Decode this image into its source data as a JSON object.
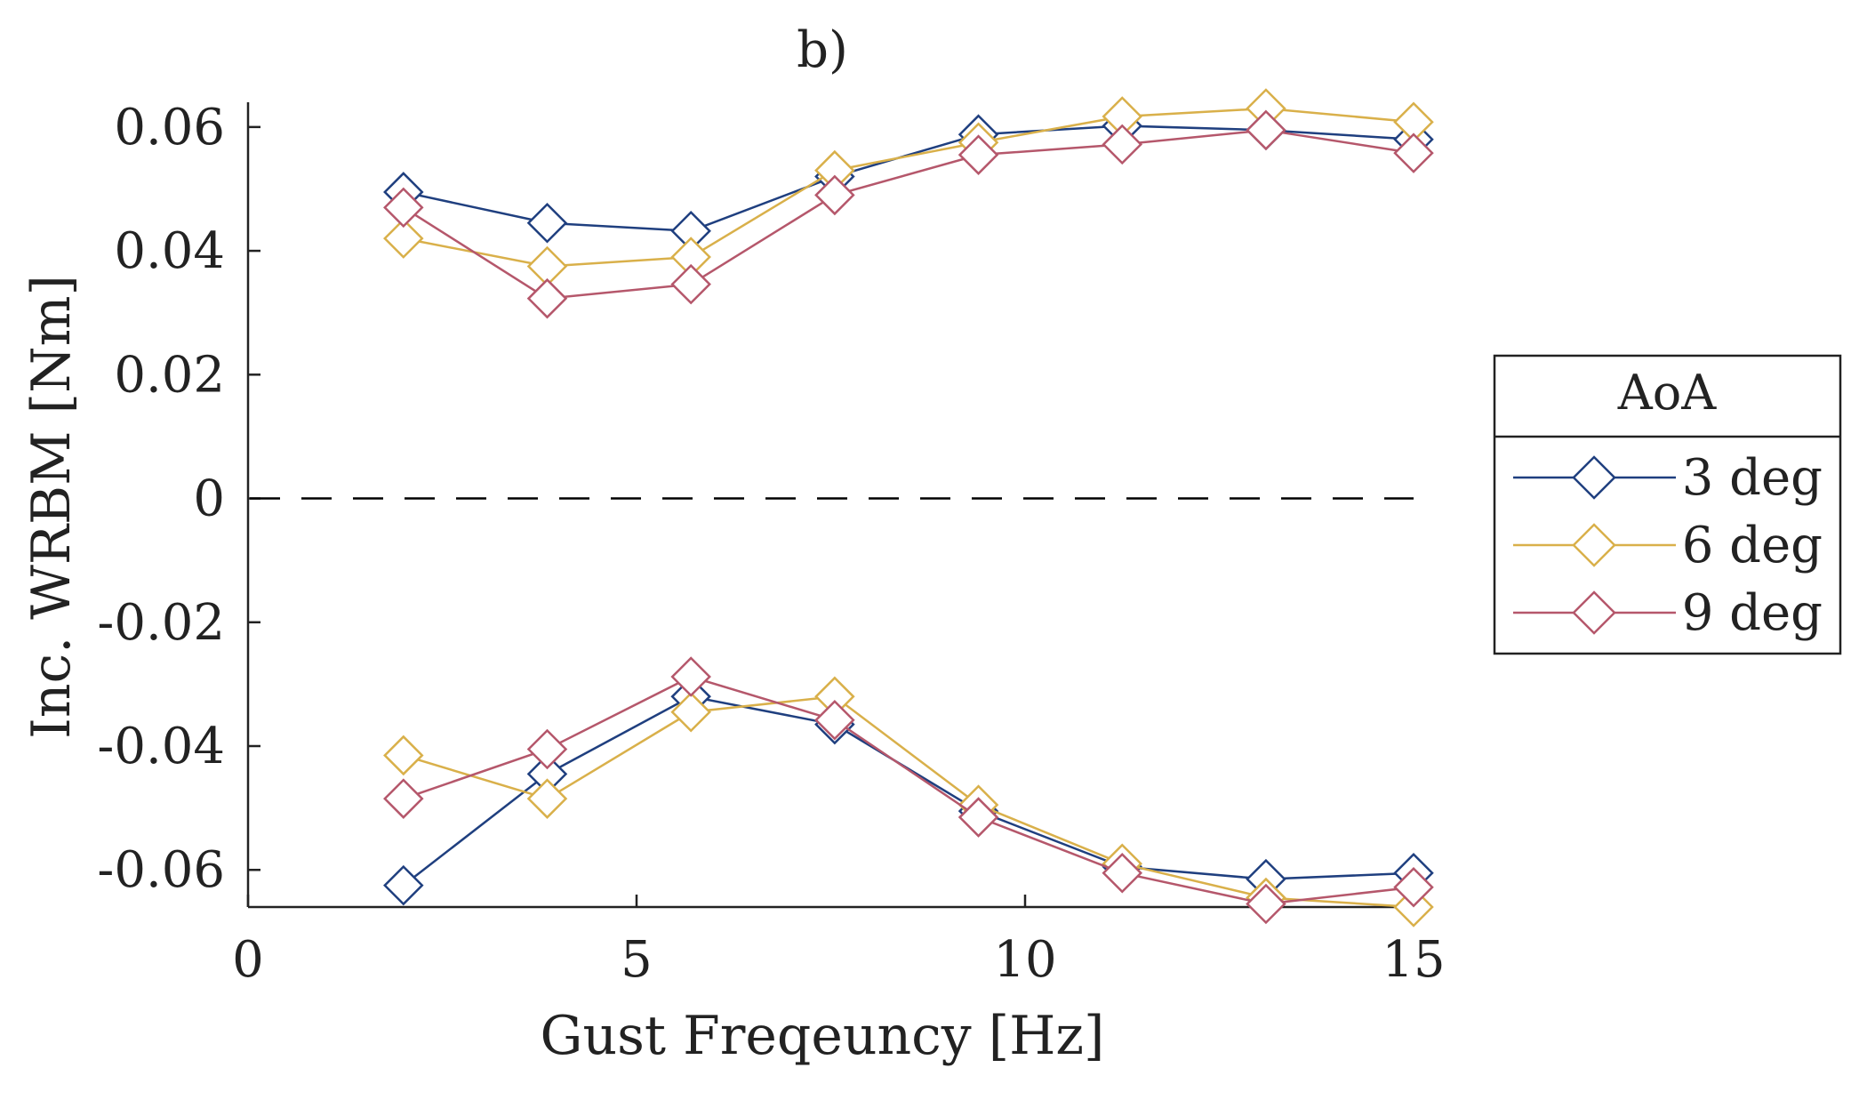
{
  "chart_data": {
    "type": "line",
    "title": "b)",
    "xlabel": "Gust Freqeuncy [Hz]",
    "ylabel": "Inc. WRBM [Nm]",
    "xlim": [
      0,
      15
    ],
    "ylim": [
      -0.066,
      0.064
    ],
    "xticks": [
      0,
      5,
      10,
      15
    ],
    "ytick_values": [
      -0.06,
      -0.04,
      -0.02,
      0,
      0.02,
      0.04,
      0.06
    ],
    "ytick_labels": [
      "-0.06",
      "-0.04",
      "-0.02",
      "0",
      "0.02",
      "0.04",
      "0.06"
    ],
    "grid": false,
    "reference_line": {
      "y": 0,
      "style": "dashed",
      "color": "#000000"
    },
    "legend": {
      "title": "AoA",
      "position": "right-outside"
    },
    "x": [
      2.0,
      3.85,
      5.7,
      7.55,
      9.4,
      11.25,
      13.1,
      15.0
    ],
    "series": [
      {
        "name": "3 deg",
        "color": "#1f3f7f",
        "upper": [
          0.0495,
          0.0445,
          0.0432,
          0.052,
          0.0588,
          0.0602,
          0.0595,
          0.058
        ],
        "lower": [
          -0.0625,
          -0.0445,
          -0.032,
          -0.0365,
          -0.0505,
          -0.0595,
          -0.0615,
          -0.0605
        ]
      },
      {
        "name": "6 deg",
        "color": "#d9b04a",
        "upper": [
          0.042,
          0.0375,
          0.039,
          0.053,
          0.0575,
          0.0617,
          0.063,
          0.0608
        ],
        "lower": [
          -0.0415,
          -0.0485,
          -0.0345,
          -0.032,
          -0.0495,
          -0.059,
          -0.0645,
          -0.066
        ]
      },
      {
        "name": "9 deg",
        "color": "#b5576b",
        "upper": [
          0.047,
          0.0323,
          0.0346,
          0.049,
          0.0555,
          0.0572,
          0.0595,
          0.0558
        ],
        "lower": [
          -0.0485,
          -0.0405,
          -0.0288,
          -0.0358,
          -0.0515,
          -0.0605,
          -0.0655,
          -0.0628
        ]
      }
    ]
  }
}
